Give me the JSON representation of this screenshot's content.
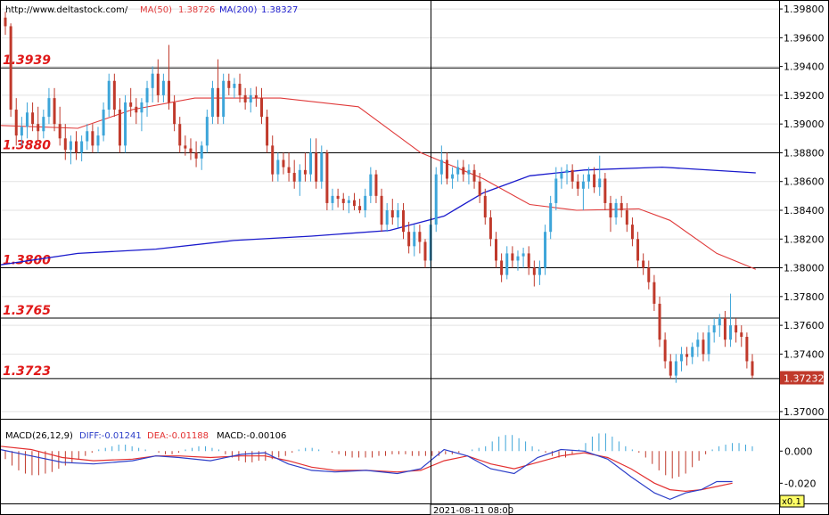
{
  "header": {
    "source": "http://www.deltastock.com/",
    "ma50_label": "MA(50)",
    "ma50_value": "1.38726",
    "ma200_label": "MA(200)",
    "ma200_value": "1.38327"
  },
  "colors": {
    "bull": "#3da5d9",
    "bear": "#c0392b",
    "ma50": "#e03a3a",
    "ma200": "#1a1acc",
    "level": "#e01818",
    "grid": "#e2e2e2",
    "diff_line": "#2c3ec8",
    "dea_line": "#e33030"
  },
  "chart_data": {
    "type": "candlestick",
    "price_axis": {
      "ylim": [
        1.3695,
        1.3985
      ],
      "ticks": [
        "1.39800",
        "1.39600",
        "1.39400",
        "1.39200",
        "1.39000",
        "1.38800",
        "1.38600",
        "1.38400",
        "1.38200",
        "1.38000",
        "1.37800",
        "1.37600",
        "1.37400",
        "1.37000"
      ],
      "last_price": "1.37232"
    },
    "levels": [
      {
        "value": 1.3939,
        "label": "1.3939"
      },
      {
        "value": 1.388,
        "label": "1.3880"
      },
      {
        "value": 1.38,
        "label": "1.3800"
      },
      {
        "value": 1.3765,
        "label": "1.3765"
      },
      {
        "value": 1.3723,
        "label": "1.3723"
      }
    ],
    "crosshair": {
      "time": "2021-08-11 08:00"
    },
    "zoom": "x0.1",
    "ohlc": [
      [
        1.3974,
        1.3978,
        1.3962,
        1.3968
      ],
      [
        1.3968,
        1.397,
        1.3905,
        1.391
      ],
      [
        1.391,
        1.3918,
        1.3885,
        1.3892
      ],
      [
        1.3892,
        1.3905,
        1.3885,
        1.3898
      ],
      [
        1.3898,
        1.3915,
        1.389,
        1.3908
      ],
      [
        1.3908,
        1.3915,
        1.3895,
        1.39
      ],
      [
        1.39,
        1.3912,
        1.3888,
        1.3895
      ],
      [
        1.3895,
        1.391,
        1.389,
        1.3905
      ],
      [
        1.3905,
        1.3925,
        1.39,
        1.3918
      ],
      [
        1.3918,
        1.3925,
        1.3895,
        1.39
      ],
      [
        1.39,
        1.3912,
        1.3885,
        1.389
      ],
      [
        1.389,
        1.39,
        1.3875,
        1.3882
      ],
      [
        1.3882,
        1.3892,
        1.3872,
        1.3888
      ],
      [
        1.3888,
        1.3895,
        1.3875,
        1.388
      ],
      [
        1.388,
        1.3892,
        1.3874,
        1.3888
      ],
      [
        1.3888,
        1.39,
        1.3882,
        1.3895
      ],
      [
        1.3895,
        1.39,
        1.388,
        1.3885
      ],
      [
        1.3885,
        1.3898,
        1.388,
        1.3892
      ],
      [
        1.3892,
        1.3915,
        1.3888,
        1.391
      ],
      [
        1.391,
        1.3935,
        1.3905,
        1.393
      ],
      [
        1.393,
        1.3935,
        1.3905,
        1.391
      ],
      [
        1.391,
        1.3918,
        1.388,
        1.3885
      ],
      [
        1.3885,
        1.392,
        1.388,
        1.3915
      ],
      [
        1.3915,
        1.3925,
        1.3905,
        1.3912
      ],
      [
        1.3912,
        1.3918,
        1.39,
        1.3908
      ],
      [
        1.3908,
        1.3918,
        1.3895,
        1.3915
      ],
      [
        1.3915,
        1.393,
        1.3905,
        1.3925
      ],
      [
        1.3925,
        1.394,
        1.3915,
        1.3935
      ],
      [
        1.3935,
        1.3945,
        1.3915,
        1.392
      ],
      [
        1.392,
        1.3935,
        1.3915,
        1.393
      ],
      [
        1.393,
        1.3955,
        1.391,
        1.3915
      ],
      [
        1.3915,
        1.392,
        1.3895,
        1.39
      ],
      [
        1.39,
        1.3905,
        1.388,
        1.3885
      ],
      [
        1.3885,
        1.3892,
        1.3878,
        1.3883
      ],
      [
        1.3883,
        1.389,
        1.3875,
        1.388
      ],
      [
        1.388,
        1.3888,
        1.387,
        1.3876
      ],
      [
        1.3876,
        1.3888,
        1.3868,
        1.3885
      ],
      [
        1.3885,
        1.391,
        1.388,
        1.3905
      ],
      [
        1.3905,
        1.393,
        1.39,
        1.3925
      ],
      [
        1.3925,
        1.3945,
        1.39,
        1.3905
      ],
      [
        1.3905,
        1.3935,
        1.39,
        1.393
      ],
      [
        1.393,
        1.3935,
        1.392,
        1.3925
      ],
      [
        1.3925,
        1.3932,
        1.3918,
        1.3928
      ],
      [
        1.3928,
        1.3935,
        1.3915,
        1.392
      ],
      [
        1.392,
        1.3925,
        1.391,
        1.3915
      ],
      [
        1.3915,
        1.3925,
        1.3908,
        1.392
      ],
      [
        1.392,
        1.3926,
        1.3912,
        1.3918
      ],
      [
        1.3918,
        1.3925,
        1.39,
        1.3905
      ],
      [
        1.3905,
        1.391,
        1.388,
        1.3885
      ],
      [
        1.3885,
        1.3892,
        1.386,
        1.3865
      ],
      [
        1.3865,
        1.388,
        1.386,
        1.3875
      ],
      [
        1.3875,
        1.388,
        1.3865,
        1.387
      ],
      [
        1.387,
        1.388,
        1.386,
        1.3866
      ],
      [
        1.3866,
        1.3875,
        1.3855,
        1.386
      ],
      [
        1.386,
        1.3872,
        1.385,
        1.3868
      ],
      [
        1.3868,
        1.388,
        1.386,
        1.3865
      ],
      [
        1.3865,
        1.389,
        1.386,
        1.388
      ],
      [
        1.388,
        1.389,
        1.3855,
        1.386
      ],
      [
        1.386,
        1.3885,
        1.3855,
        1.388
      ],
      [
        1.388,
        1.3882,
        1.384,
        1.3845
      ],
      [
        1.3845,
        1.3855,
        1.384,
        1.385
      ],
      [
        1.385,
        1.3855,
        1.3842,
        1.3848
      ],
      [
        1.3848,
        1.3852,
        1.384,
        1.3845
      ],
      [
        1.3845,
        1.385,
        1.3838,
        1.3847
      ],
      [
        1.3847,
        1.3852,
        1.384,
        1.3843
      ],
      [
        1.3843,
        1.3848,
        1.3838,
        1.384
      ],
      [
        1.384,
        1.3855,
        1.3835,
        1.385
      ],
      [
        1.385,
        1.387,
        1.3845,
        1.3865
      ],
      [
        1.3865,
        1.3868,
        1.3845,
        1.385
      ],
      [
        1.385,
        1.3855,
        1.3825,
        1.383
      ],
      [
        1.383,
        1.3845,
        1.3825,
        1.384
      ],
      [
        1.384,
        1.3848,
        1.383,
        1.3835
      ],
      [
        1.3835,
        1.3845,
        1.3828,
        1.384
      ],
      [
        1.384,
        1.3845,
        1.382,
        1.3825
      ],
      [
        1.3825,
        1.3832,
        1.381,
        1.3815
      ],
      [
        1.3815,
        1.383,
        1.3808,
        1.3825
      ],
      [
        1.3825,
        1.383,
        1.381,
        1.3818
      ],
      [
        1.3818,
        1.382,
        1.38,
        1.3805
      ],
      [
        1.3805,
        1.3835,
        1.38,
        1.383
      ],
      [
        1.383,
        1.387,
        1.3825,
        1.3865
      ],
      [
        1.3865,
        1.3885,
        1.3858,
        1.3875
      ],
      [
        1.3875,
        1.388,
        1.3858,
        1.3862
      ],
      [
        1.3862,
        1.387,
        1.3855,
        1.3865
      ],
      [
        1.3865,
        1.3875,
        1.386,
        1.387
      ],
      [
        1.387,
        1.3875,
        1.386,
        1.3865
      ],
      [
        1.3865,
        1.3872,
        1.3858,
        1.3868
      ],
      [
        1.3868,
        1.3872,
        1.3855,
        1.386
      ],
      [
        1.386,
        1.3866,
        1.3845,
        1.385
      ],
      [
        1.385,
        1.3855,
        1.383,
        1.3835
      ],
      [
        1.3835,
        1.384,
        1.3815,
        1.382
      ],
      [
        1.382,
        1.3825,
        1.38,
        1.3805
      ],
      [
        1.3805,
        1.381,
        1.379,
        1.3795
      ],
      [
        1.3795,
        1.3815,
        1.3792,
        1.381
      ],
      [
        1.381,
        1.3815,
        1.38,
        1.3805
      ],
      [
        1.3805,
        1.3812,
        1.3798,
        1.3808
      ],
      [
        1.3808,
        1.3814,
        1.38,
        1.381
      ],
      [
        1.381,
        1.3815,
        1.3795,
        1.38
      ],
      [
        1.38,
        1.3805,
        1.3787,
        1.3795
      ],
      [
        1.3795,
        1.3805,
        1.3788,
        1.38
      ],
      [
        1.38,
        1.383,
        1.3795,
        1.3825
      ],
      [
        1.3825,
        1.385,
        1.382,
        1.3845
      ],
      [
        1.3845,
        1.387,
        1.384,
        1.3862
      ],
      [
        1.3862,
        1.387,
        1.3855,
        1.3866
      ],
      [
        1.3866,
        1.3872,
        1.3858,
        1.3868
      ],
      [
        1.3868,
        1.3872,
        1.3855,
        1.386
      ],
      [
        1.386,
        1.3865,
        1.385,
        1.3855
      ],
      [
        1.3855,
        1.3865,
        1.384,
        1.386
      ],
      [
        1.386,
        1.387,
        1.3855,
        1.3865
      ],
      [
        1.3865,
        1.387,
        1.3852,
        1.3856
      ],
      [
        1.3856,
        1.3878,
        1.385,
        1.3862
      ],
      [
        1.3862,
        1.3866,
        1.384,
        1.3845
      ],
      [
        1.3845,
        1.385,
        1.3825,
        1.3835
      ],
      [
        1.3835,
        1.3848,
        1.383,
        1.3845
      ],
      [
        1.3845,
        1.385,
        1.3835,
        1.384
      ],
      [
        1.384,
        1.3845,
        1.3825,
        1.383
      ],
      [
        1.383,
        1.3835,
        1.3815,
        1.382
      ],
      [
        1.382,
        1.3825,
        1.38,
        1.3805
      ],
      [
        1.3805,
        1.381,
        1.3795,
        1.38
      ],
      [
        1.38,
        1.3805,
        1.3785,
        1.379
      ],
      [
        1.379,
        1.3795,
        1.377,
        1.3775
      ],
      [
        1.3775,
        1.378,
        1.3745,
        1.375
      ],
      [
        1.375,
        1.3755,
        1.373,
        1.3735
      ],
      [
        1.3735,
        1.374,
        1.3723,
        1.3725
      ],
      [
        1.3725,
        1.374,
        1.372,
        1.3735
      ],
      [
        1.3735,
        1.3745,
        1.3728,
        1.374
      ],
      [
        1.374,
        1.3745,
        1.3732,
        1.3738
      ],
      [
        1.3738,
        1.3748,
        1.3733,
        1.3745
      ],
      [
        1.3745,
        1.3755,
        1.3738,
        1.375
      ],
      [
        1.375,
        1.3755,
        1.3735,
        1.374
      ],
      [
        1.374,
        1.376,
        1.3735,
        1.3755
      ],
      [
        1.3755,
        1.3765,
        1.3748,
        1.376
      ],
      [
        1.376,
        1.3768,
        1.3752,
        1.3765
      ],
      [
        1.3765,
        1.377,
        1.3745,
        1.375
      ],
      [
        1.375,
        1.3782,
        1.3745,
        1.376
      ],
      [
        1.376,
        1.3765,
        1.3748,
        1.3755
      ],
      [
        1.3755,
        1.376,
        1.3745,
        1.3752
      ],
      [
        1.3752,
        1.3755,
        1.373,
        1.3735
      ],
      [
        1.3735,
        1.374,
        1.3723,
        1.3725
      ]
    ],
    "ma50": [
      [
        0,
        1.3899
      ],
      [
        0.1,
        1.3897
      ],
      [
        0.17,
        1.391
      ],
      [
        0.25,
        1.3918
      ],
      [
        0.36,
        1.3918
      ],
      [
        0.46,
        1.3912
      ],
      [
        0.54,
        1.388
      ],
      [
        0.62,
        1.3862
      ],
      [
        0.68,
        1.3844
      ],
      [
        0.74,
        1.384
      ],
      [
        0.82,
        1.3841
      ],
      [
        0.86,
        1.3833
      ],
      [
        0.92,
        1.381
      ],
      [
        0.97,
        1.3799
      ]
    ],
    "ma200": [
      [
        0,
        1.3802
      ],
      [
        0.1,
        1.381
      ],
      [
        0.2,
        1.3813
      ],
      [
        0.3,
        1.3819
      ],
      [
        0.4,
        1.3822
      ],
      [
        0.5,
        1.3826
      ],
      [
        0.57,
        1.3836
      ],
      [
        0.62,
        1.3852
      ],
      [
        0.68,
        1.3864
      ],
      [
        0.75,
        1.3868
      ],
      [
        0.85,
        1.387
      ],
      [
        0.97,
        1.3866
      ]
    ],
    "macd": {
      "title": "MACD(26,12,9)",
      "diff_label": "DIFF:-0.01241",
      "dea_label": "DEA:-0.01188",
      "macd_label": "MACD:-0.00106",
      "ylim": [
        -0.032,
        0.014
      ],
      "ticks": [
        "0.000",
        "-0.020"
      ],
      "histogram": [
        -0.005,
        -0.009,
        -0.012,
        -0.014,
        -0.015,
        -0.015,
        -0.014,
        -0.013,
        -0.011,
        -0.009,
        -0.007,
        -0.005,
        -0.003,
        -0.001,
        0.001,
        0.002,
        0.003,
        0.004,
        0.004,
        0.003,
        0.002,
        0.001,
        0.0,
        -0.001,
        -0.002,
        -0.002,
        -0.001,
        0.001,
        0.002,
        0.003,
        0.003,
        0.002,
        0.001,
        -0.002,
        -0.004,
        -0.006,
        -0.007,
        -0.007,
        -0.006,
        -0.006,
        -0.005,
        -0.004,
        -0.003,
        -0.001,
        0.001,
        0.002,
        0.002,
        0.001,
        0.0,
        -0.001,
        -0.002,
        -0.003,
        -0.004,
        -0.004,
        -0.004,
        -0.004,
        -0.003,
        -0.003,
        -0.002,
        -0.002,
        -0.002,
        -0.003,
        -0.003,
        -0.003,
        -0.003,
        -0.003,
        -0.002,
        -0.002,
        -0.001,
        0.0,
        0.001,
        0.002,
        0.003,
        0.006,
        0.009,
        0.01,
        0.01,
        0.008,
        0.006,
        0.003,
        0.001,
        -0.001,
        -0.003,
        -0.004,
        -0.004,
        -0.002,
        0.001,
        0.005,
        0.009,
        0.011,
        0.011,
        0.009,
        0.006,
        0.003,
        0.001,
        -0.001,
        -0.004,
        -0.008,
        -0.012,
        -0.015,
        -0.017,
        -0.016,
        -0.014,
        -0.01,
        -0.006,
        -0.002,
        0.001,
        0.003,
        0.004,
        0.005,
        0.005,
        0.004,
        0.003
      ],
      "diff": [
        [
          0,
          0.001
        ],
        [
          0.04,
          -0.003
        ],
        [
          0.08,
          -0.007
        ],
        [
          0.12,
          -0.008
        ],
        [
          0.17,
          -0.006
        ],
        [
          0.2,
          -0.003
        ],
        [
          0.23,
          -0.004
        ],
        [
          0.27,
          -0.006
        ],
        [
          0.31,
          -0.002
        ],
        [
          0.34,
          -0.001
        ],
        [
          0.37,
          -0.008
        ],
        [
          0.4,
          -0.012
        ],
        [
          0.43,
          -0.013
        ],
        [
          0.47,
          -0.012
        ],
        [
          0.51,
          -0.014
        ],
        [
          0.54,
          -0.011
        ],
        [
          0.57,
          0.001
        ],
        [
          0.6,
          -0.003
        ],
        [
          0.63,
          -0.011
        ],
        [
          0.66,
          -0.014
        ],
        [
          0.69,
          -0.004
        ],
        [
          0.72,
          0.001
        ],
        [
          0.75,
          0.0
        ],
        [
          0.78,
          -0.005
        ],
        [
          0.81,
          -0.016
        ],
        [
          0.84,
          -0.026
        ],
        [
          0.86,
          -0.03
        ],
        [
          0.88,
          -0.026
        ],
        [
          0.9,
          -0.024
        ],
        [
          0.92,
          -0.019
        ],
        [
          0.94,
          -0.019
        ]
      ],
      "dea": [
        [
          0,
          0.003
        ],
        [
          0.04,
          0.001
        ],
        [
          0.08,
          -0.004
        ],
        [
          0.12,
          -0.006
        ],
        [
          0.17,
          -0.005
        ],
        [
          0.2,
          -0.003
        ],
        [
          0.23,
          -0.003
        ],
        [
          0.27,
          -0.004
        ],
        [
          0.31,
          -0.003
        ],
        [
          0.34,
          -0.003
        ],
        [
          0.37,
          -0.006
        ],
        [
          0.4,
          -0.01
        ],
        [
          0.43,
          -0.012
        ],
        [
          0.47,
          -0.012
        ],
        [
          0.51,
          -0.013
        ],
        [
          0.54,
          -0.012
        ],
        [
          0.57,
          -0.006
        ],
        [
          0.6,
          -0.003
        ],
        [
          0.63,
          -0.008
        ],
        [
          0.66,
          -0.011
        ],
        [
          0.69,
          -0.007
        ],
        [
          0.72,
          -0.003
        ],
        [
          0.75,
          -0.001
        ],
        [
          0.78,
          -0.004
        ],
        [
          0.81,
          -0.011
        ],
        [
          0.84,
          -0.02
        ],
        [
          0.86,
          -0.024
        ],
        [
          0.88,
          -0.025
        ],
        [
          0.9,
          -0.024
        ],
        [
          0.92,
          -0.022
        ],
        [
          0.94,
          -0.02
        ]
      ]
    }
  }
}
